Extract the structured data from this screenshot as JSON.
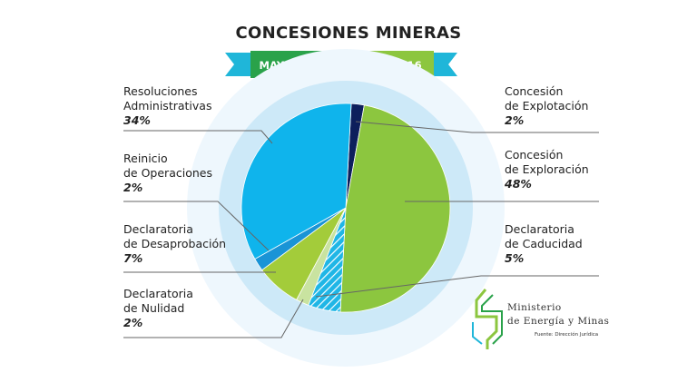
{
  "header": {
    "title": "CONCESIONES MINERAS",
    "banner_left": "MAYO 2015",
    "banner_right": "JUNIO 2016"
  },
  "colors": {
    "banner_teal": "#1fb6d9",
    "banner_dark_green": "#2aa24a",
    "banner_light_green": "#8cc63f",
    "halo_outer": "#eef7fd",
    "halo_inner": "#cde9f8",
    "leader_line": "#666666"
  },
  "labels": {
    "resoluciones": {
      "line1": "Resoluciones",
      "line2": "Administrativas",
      "pct": "34%"
    },
    "reinicio": {
      "line1": "Reinicio",
      "line2": "de Operaciones",
      "pct": "2%"
    },
    "desaprobacion": {
      "line1": "Declaratoria",
      "line2": "de Desaprobación",
      "pct": "7%"
    },
    "nulidad": {
      "line1": "Declaratoria",
      "line2": "de Nulidad",
      "pct": "2%"
    },
    "explotacion": {
      "line1": "Concesión",
      "line2": "de Explotación",
      "pct": "2%"
    },
    "exploracion": {
      "line1": "Concesión",
      "line2": "de Exploración",
      "pct": "48%"
    },
    "caducidad": {
      "line1": "Declaratoria",
      "line2": "de Caducidad",
      "pct": "5%"
    }
  },
  "ministry": {
    "name_line1": "Ministerio",
    "name_line2": "de Energía y Minas",
    "source": "Fuente: Dirección Jurídica",
    "logo_icon": "ministry-logo-icon",
    "logo_color": "#8cc63f"
  },
  "chart_data": {
    "type": "pie",
    "title": "CONCESIONES MINERAS",
    "subtitle": [
      "MAYO 2015",
      "JUNIO 2016"
    ],
    "slices": [
      {
        "name": "Concesión de Explotación",
        "value": 2,
        "color": "#0d1f5c",
        "pattern": "solid"
      },
      {
        "name": "Concesión de Exploración",
        "value": 48,
        "color": "#8cc63f",
        "pattern": "solid"
      },
      {
        "name": "Declaratoria de Caducidad",
        "value": 5,
        "color": "#1fb6e6",
        "pattern": "hatched"
      },
      {
        "name": "Declaratoria de Nulidad",
        "value": 2,
        "color": "#c9e3a0",
        "pattern": "solid"
      },
      {
        "name": "Declaratoria de Desaprobación",
        "value": 7,
        "color": "#a3cc3a",
        "pattern": "solid"
      },
      {
        "name": "Reinicio de Operaciones",
        "value": 2,
        "color": "#1a94d6",
        "pattern": "solid"
      },
      {
        "name": "Resoluciones Administrativas",
        "value": 34,
        "color": "#0fb4ec",
        "pattern": "solid"
      }
    ],
    "start_angle_deg": 3,
    "direction": "clockwise"
  }
}
